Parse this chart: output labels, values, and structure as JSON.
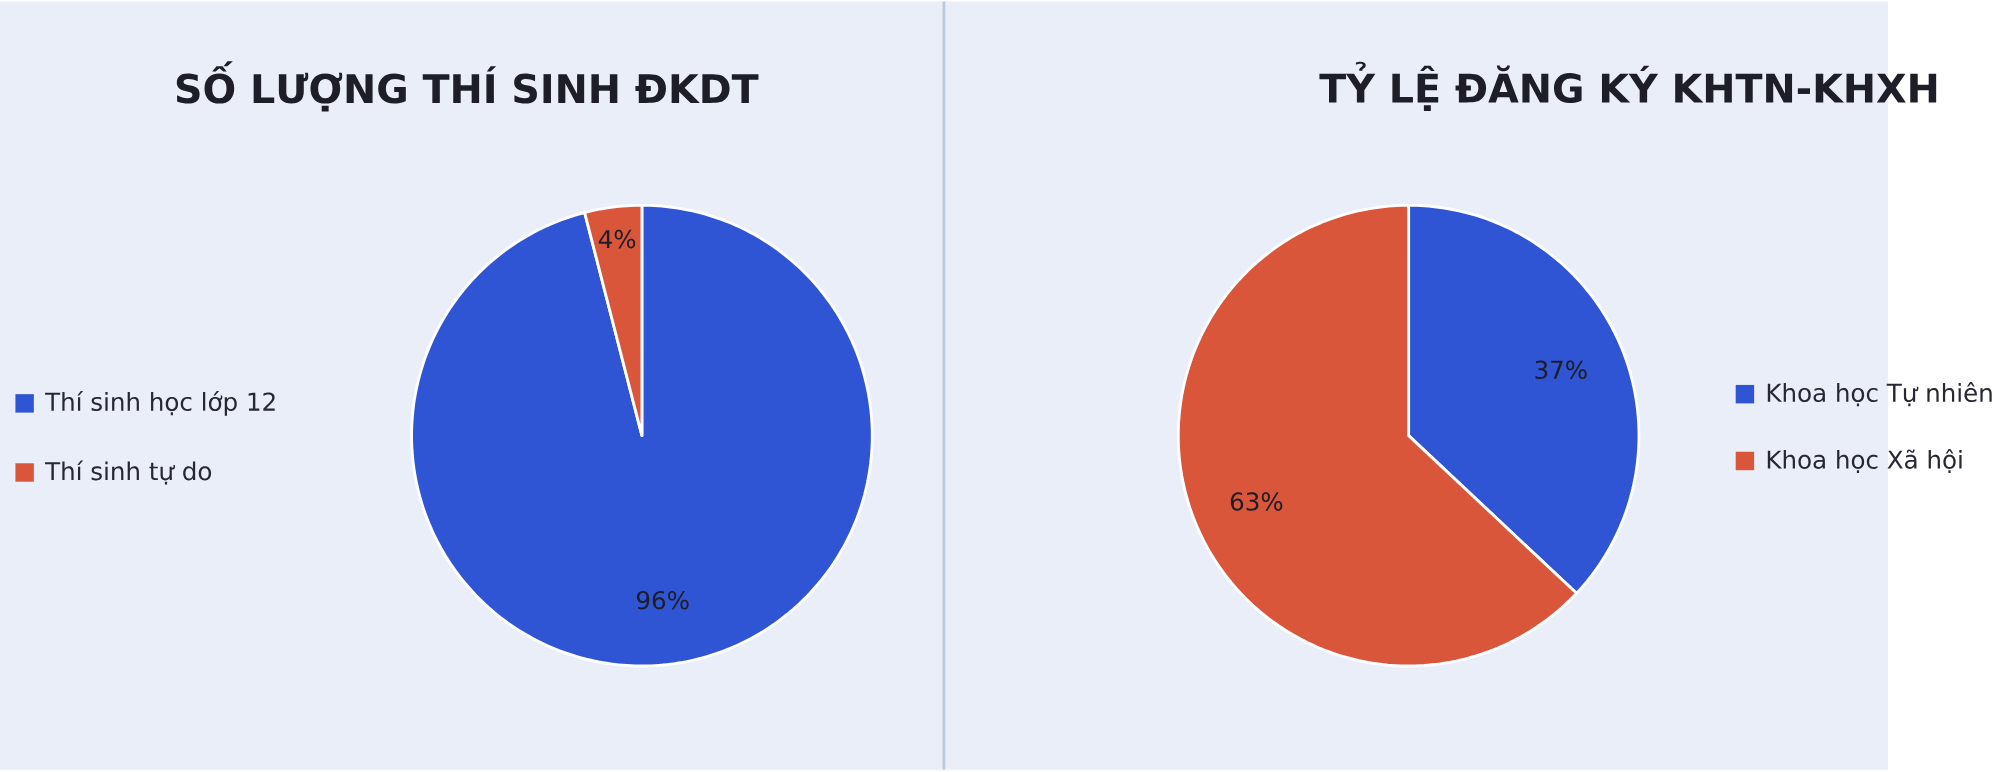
{
  "chart_data": [
    {
      "type": "pie",
      "title": "SỐ LƯỢNG THÍ SINH ĐKDT",
      "categories": [
        "Thí sinh học lớp 12",
        "Thí sinh tự do"
      ],
      "values": [
        96,
        4
      ],
      "colors": [
        "#2f55d4",
        "#d9563a"
      ],
      "value_labels": [
        "96%",
        "4%"
      ],
      "legend": "left"
    },
    {
      "type": "pie",
      "title": "TỶ LỆ ĐĂNG KÝ KHTN-KHXH",
      "categories": [
        "Khoa học Tự nhiên",
        "Khoa học Xã hội"
      ],
      "values": [
        37,
        63
      ],
      "colors": [
        "#2f55d4",
        "#d9563a"
      ],
      "value_labels": [
        "37%",
        "63%"
      ],
      "legend": "right"
    }
  ]
}
